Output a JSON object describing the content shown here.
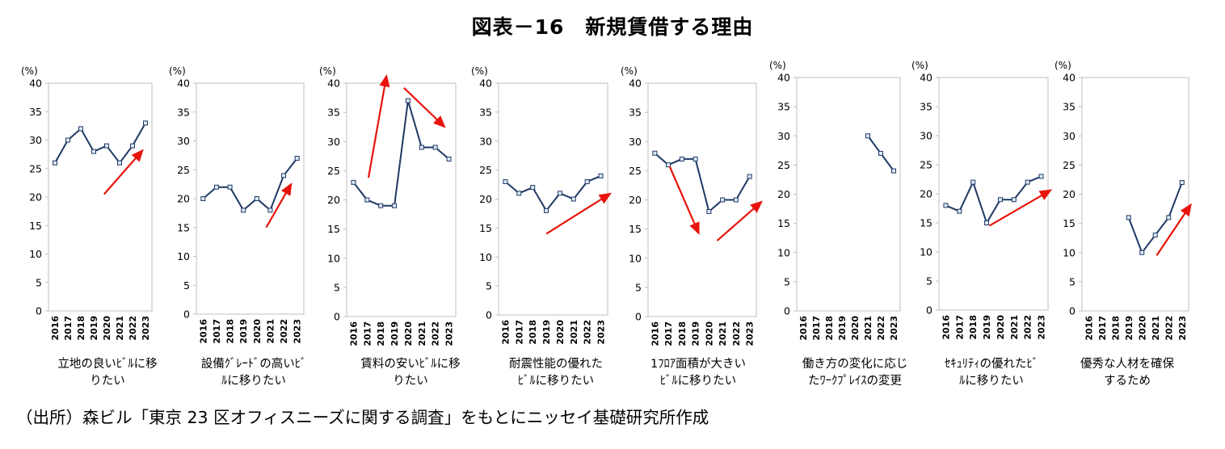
{
  "title": "図表－16　新規賃借する理由",
  "source": "（出所）森ビル「東京 23 区オフィスニーズに関する調査」をもとにニッセイ基礎研究所作成",
  "colors": {
    "series": "#1f3864",
    "marker_fill": "#dde8f4",
    "arrow": "#e8140c",
    "grid": "#bfbfbf"
  },
  "chart_data": [
    {
      "type": "line",
      "caption": [
        "立地の良いﾋﾞﾙに移",
        "りたい"
      ],
      "unit": "(%)",
      "ylim": [
        0,
        40
      ],
      "yticks": [
        0,
        5,
        10,
        15,
        20,
        25,
        30,
        35,
        40
      ],
      "categories": [
        "2016",
        "2017",
        "2018",
        "2019",
        "2020",
        "2021",
        "2022",
        "2023"
      ],
      "values": [
        26,
        30,
        32,
        28,
        29,
        26,
        29,
        33
      ],
      "arrows": [
        {
          "direction": "up",
          "from": [
            3.8,
            20.5
          ],
          "to": [
            6.7,
            28
          ]
        }
      ]
    },
    {
      "type": "line",
      "caption": [
        "設備ｸﾞﾚｰﾄﾞの高いﾋﾞ",
        "ﾙに移りたい"
      ],
      "unit": "(%)",
      "ylim": [
        0,
        40
      ],
      "yticks": [
        0,
        5,
        10,
        15,
        20,
        25,
        30,
        35,
        40
      ],
      "categories": [
        "2016",
        "2017",
        "2018",
        "2019",
        "2020",
        "2021",
        "2022",
        "2023"
      ],
      "values": [
        20,
        22,
        22,
        18,
        20,
        18,
        24,
        27
      ],
      "arrows": [
        {
          "direction": "up",
          "from": [
            4.7,
            15
          ],
          "to": [
            6.5,
            22.3
          ]
        }
      ]
    },
    {
      "type": "line",
      "caption": [
        "賃料の安いﾋﾞﾙに移",
        "りたい"
      ],
      "unit": "(%)",
      "ylim": [
        0,
        40
      ],
      "yticks": [
        0,
        5,
        10,
        15,
        20,
        25,
        30,
        35,
        40
      ],
      "categories": [
        "2016",
        "2017",
        "2018",
        "2019",
        "2020",
        "2021",
        "2022",
        "2023"
      ],
      "values": [
        23,
        20,
        19,
        19,
        37,
        29,
        29,
        27
      ],
      "arrows": [
        {
          "direction": "up",
          "from": [
            1.1,
            23.8
          ],
          "to": [
            2.4,
            41
          ]
        },
        {
          "direction": "down",
          "from": [
            3.7,
            39.2
          ],
          "to": [
            6.6,
            32.7
          ]
        }
      ]
    },
    {
      "type": "line",
      "caption": [
        "耐震性能の優れた",
        "ﾋﾞﾙに移りたい"
      ],
      "unit": "(%)",
      "ylim": [
        0,
        40
      ],
      "yticks": [
        0,
        5,
        10,
        15,
        20,
        25,
        30,
        35,
        40
      ],
      "categories": [
        "2016",
        "2017",
        "2018",
        "2019",
        "2020",
        "2021",
        "2022",
        "2023"
      ],
      "values": [
        23,
        21,
        22,
        18,
        21,
        20,
        23,
        24
      ],
      "arrows": [
        {
          "direction": "up",
          "from": [
            3.0,
            14
          ],
          "to": [
            7.6,
            20.8
          ]
        }
      ]
    },
    {
      "type": "line",
      "caption": [
        "1ﾌﾛｱ面積が大きい",
        "ﾋﾞﾙに移りたい"
      ],
      "unit": "(%)",
      "ylim": [
        0,
        40
      ],
      "yticks": [
        0,
        5,
        10,
        15,
        20,
        25,
        30,
        35,
        40
      ],
      "categories": [
        "2016",
        "2017",
        "2018",
        "2019",
        "2020",
        "2021",
        "2022",
        "2023"
      ],
      "values": [
        28,
        26,
        27,
        27,
        18,
        20,
        20,
        24
      ],
      "arrows": [
        {
          "direction": "down",
          "from": [
            1.1,
            25.7
          ],
          "to": [
            3.2,
            14.5
          ]
        },
        {
          "direction": "up",
          "from": [
            4.6,
            13
          ],
          "to": [
            7.8,
            19.5
          ]
        }
      ]
    },
    {
      "type": "line",
      "caption": [
        "働き方の変化に応じ",
        "たﾜｰｸﾌﾟﾚｲｽの変更"
      ],
      "unit": "(%)",
      "ylim": [
        0,
        40
      ],
      "yticks": [
        0,
        5,
        10,
        15,
        20,
        25,
        30,
        35,
        40
      ],
      "categories": [
        "2016",
        "2017",
        "2018",
        "2019",
        "2020",
        "2021",
        "2022",
        "2023"
      ],
      "values": [
        null,
        null,
        null,
        null,
        null,
        30,
        27,
        24
      ],
      "arrows": []
    },
    {
      "type": "line",
      "caption": [
        "ｾｷｭﾘﾃｨの優れたﾋﾞ",
        "ﾙに移りたい"
      ],
      "unit": "(%)",
      "ylim": [
        0,
        40
      ],
      "yticks": [
        0,
        5,
        10,
        15,
        20,
        25,
        30,
        35,
        40
      ],
      "categories": [
        "2016",
        "2017",
        "2018",
        "2019",
        "2020",
        "2021",
        "2022",
        "2023"
      ],
      "values": [
        18,
        17,
        22,
        15,
        19,
        19,
        22,
        23
      ],
      "arrows": [
        {
          "direction": "up",
          "from": [
            3.2,
            14.5
          ],
          "to": [
            7.6,
            20.5
          ]
        }
      ]
    },
    {
      "type": "line",
      "caption": [
        "優秀な人材を確保",
        "するため"
      ],
      "unit": "(%)",
      "ylim": [
        0,
        40
      ],
      "yticks": [
        0,
        5,
        10,
        15,
        20,
        25,
        30,
        35,
        40
      ],
      "categories": [
        "2016",
        "2017",
        "2018",
        "2019",
        "2020",
        "2021",
        "2022",
        "2023"
      ],
      "values": [
        null,
        null,
        null,
        16,
        10,
        13,
        16,
        22
      ],
      "arrows": [
        {
          "direction": "up",
          "from": [
            5.1,
            9.5
          ],
          "to": [
            7.6,
            18
          ]
        }
      ]
    }
  ]
}
